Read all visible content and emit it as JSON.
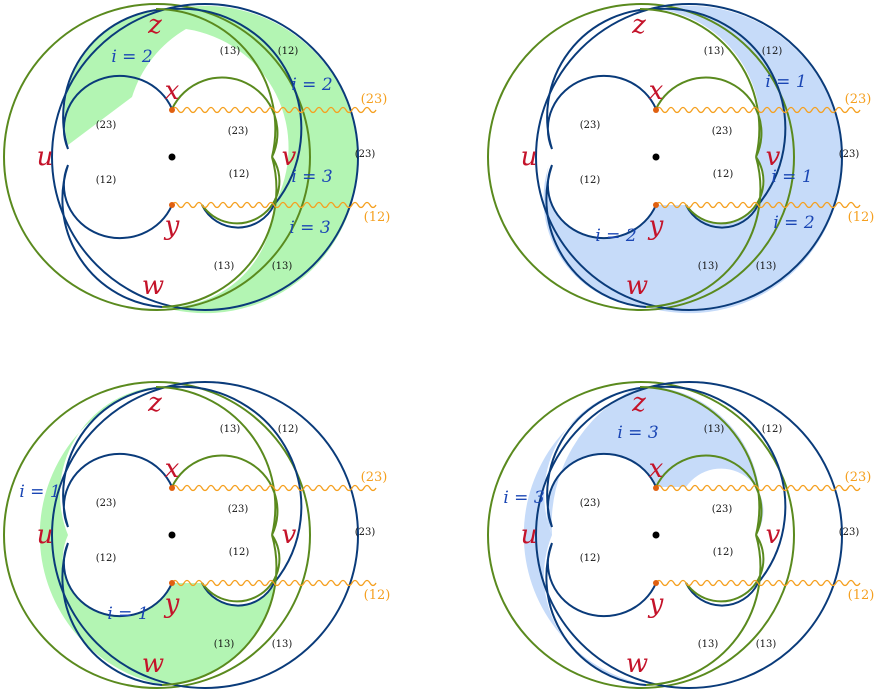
{
  "colors": {
    "blue_curve": "#0a3b7a",
    "green_curve": "#5a8a1e",
    "green_fill": "#b3f5b3",
    "blue_fill": "#c6dbf9",
    "point_label": "#c4132a",
    "index_label": "#1a46b4",
    "cut": "#f5a020",
    "cut_point": "#e06010",
    "text": "#111111"
  },
  "panels": [
    {
      "name": "panel-top-left",
      "region": "fill-i2-i3",
      "fill_color": "green",
      "points": {
        "z": "z",
        "x": "x",
        "u": "u",
        "v": "v",
        "y": "y",
        "w": "w"
      },
      "index_labels": [
        "i = 2",
        "i = 2",
        "i = 3",
        "i = 3"
      ],
      "perm_labels": [
        "(13)",
        "(12)",
        "(23)",
        "(23)",
        "(12)",
        "(12)",
        "(13)",
        "(13)",
        "(23)"
      ],
      "cut_labels": [
        "(23)",
        "(12)"
      ]
    },
    {
      "name": "panel-top-right",
      "region": "fill-i1-i2",
      "fill_color": "blue",
      "points": {
        "z": "z",
        "x": "x",
        "u": "u",
        "v": "v",
        "y": "y",
        "w": "w"
      },
      "index_labels": [
        "i = 1",
        "i = 1",
        "i = 2",
        "i = 2"
      ],
      "perm_labels": [
        "(13)",
        "(12)",
        "(23)",
        "(23)",
        "(12)",
        "(12)",
        "(13)",
        "(13)",
        "(23)"
      ],
      "cut_labels": [
        "(23)",
        "(12)"
      ]
    },
    {
      "name": "panel-bottom-left",
      "region": "fill-i1",
      "fill_color": "green",
      "points": {
        "z": "z",
        "x": "x",
        "u": "u",
        "v": "v",
        "y": "y",
        "w": "w"
      },
      "index_labels": [
        "i = 1",
        "i = 1"
      ],
      "perm_labels": [
        "(13)",
        "(12)",
        "(23)",
        "(23)",
        "(12)",
        "(12)",
        "(13)",
        "(13)",
        "(23)"
      ],
      "cut_labels": [
        "(23)",
        "(12)"
      ]
    },
    {
      "name": "panel-bottom-right",
      "region": "fill-i3",
      "fill_color": "blue",
      "points": {
        "z": "z",
        "x": "x",
        "u": "u",
        "v": "v",
        "y": "y",
        "w": "w"
      },
      "index_labels": [
        "i = 3",
        "i = 3"
      ],
      "perm_labels": [
        "(13)",
        "(12)",
        "(23)",
        "(23)",
        "(12)",
        "(12)",
        "(13)",
        "(13)",
        "(23)"
      ],
      "cut_labels": [
        "(23)",
        "(12)"
      ]
    }
  ]
}
